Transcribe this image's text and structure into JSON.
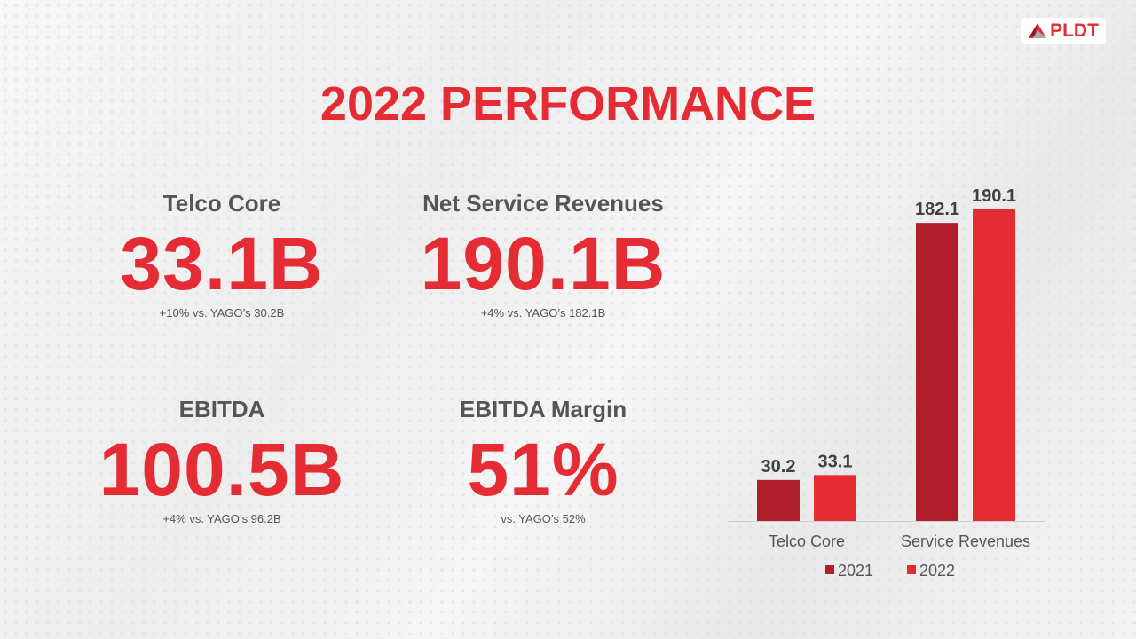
{
  "logo": {
    "text": "PLDT"
  },
  "title": "2022 PERFORMANCE",
  "kpis": [
    {
      "label": "Telco Core",
      "value": "33.1B",
      "sub": "+10% vs. YAGO’s 30.2B"
    },
    {
      "label": "Net Service Revenues",
      "value": "190.1B",
      "sub": "+4% vs. YAGO’s 182.1B"
    },
    {
      "label": "EBITDA",
      "value": "100.5B",
      "sub": "+4% vs. YAGO’s 96.2B"
    },
    {
      "label": "EBITDA Margin",
      "value": "51%",
      "sub": "vs. YAGO’s 52%"
    }
  ],
  "chart_data": {
    "type": "bar",
    "categories": [
      "Telco Core",
      "Service Revenues"
    ],
    "series": [
      {
        "name": "2021",
        "values": [
          30.2,
          182.1
        ],
        "color": "#B01E2C"
      },
      {
        "name": "2022",
        "values": [
          33.1,
          190.1
        ],
        "color": "#E52B33"
      }
    ],
    "ylim": [
      6,
      200
    ],
    "grid": false,
    "legend": "bottom",
    "data_labels": true
  }
}
